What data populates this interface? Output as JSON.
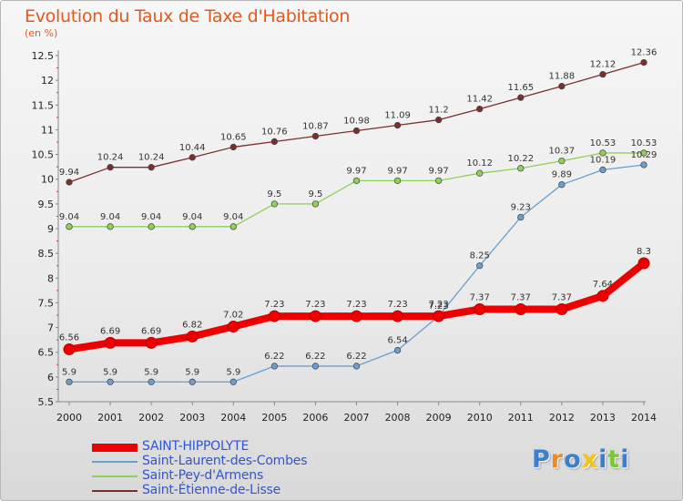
{
  "header": {
    "title": "Evolution du Taux de Taxe d'Habitation",
    "subtitle": "(en %)"
  },
  "chart_data": {
    "type": "line",
    "x": [
      2000,
      2001,
      2002,
      2003,
      2004,
      2005,
      2006,
      2007,
      2008,
      2009,
      2010,
      2011,
      2012,
      2013,
      2014
    ],
    "ylim": [
      5.5,
      12.5
    ],
    "yticks": [
      5.5,
      6,
      6.5,
      7,
      7.5,
      8,
      8.5,
      9,
      9.5,
      10,
      10.5,
      11,
      11.5,
      12,
      12.5
    ],
    "grid": false,
    "legend_position": "bottom-left",
    "series": [
      {
        "name": "Saint-Étienne-de-Lisse",
        "color": "#7a2f2f",
        "values": [
          9.94,
          10.24,
          10.24,
          10.44,
          10.65,
          10.76,
          10.87,
          10.98,
          11.09,
          11.2,
          11.42,
          11.65,
          11.88,
          12.12,
          12.36
        ],
        "labels": [
          "9.94",
          "10.24",
          "10.24",
          "10.44",
          "10.65",
          "10.76",
          "10.87",
          "10.98",
          "11.09",
          "11.2",
          "11.42",
          "11.65",
          "11.88",
          "12.12",
          "12.36"
        ]
      },
      {
        "name": "Saint-Pey-d'Armens",
        "color": "#8fd05a",
        "values": [
          9.04,
          9.04,
          9.04,
          9.04,
          9.04,
          9.5,
          9.5,
          9.97,
          9.97,
          9.97,
          10.12,
          10.22,
          10.37,
          10.53,
          10.53
        ],
        "labels": [
          "9.04",
          "9.04",
          "9.04",
          "9.04",
          "9.04",
          "9.5",
          "9.5",
          "9.97",
          "9.97",
          "9.97",
          "10.12",
          "10.22",
          "10.37",
          "10.53",
          "10.53"
        ]
      },
      {
        "name": "Saint-Laurent-des-Combes",
        "color": "#6a9fd0",
        "values": [
          5.9,
          5.9,
          5.9,
          5.9,
          5.9,
          6.22,
          6.22,
          6.22,
          6.54,
          7.23,
          8.25,
          9.23,
          9.89,
          10.19,
          10.29
        ],
        "labels": [
          "5.9",
          "5.9",
          "5.9",
          "5.9",
          "5.9",
          "6.22",
          "6.22",
          "6.22",
          "6.54",
          "7.23",
          "8.25",
          "9.23",
          "9.89",
          "10.19",
          "10.29"
        ]
      },
      {
        "name": "SAINT-HIPPOLYTE",
        "color": "#ee0000",
        "values": [
          6.56,
          6.69,
          6.69,
          6.82,
          7.02,
          7.23,
          7.23,
          7.23,
          7.23,
          7.23,
          7.37,
          7.37,
          7.37,
          7.64,
          8.3
        ],
        "labels": [
          "6.56",
          "6.69",
          "6.69",
          "6.82",
          "7.02",
          "7.23",
          "7.23",
          "7.23",
          "7.23",
          "7.23",
          "7.37",
          "7.37",
          "7.37",
          "7.64",
          "8.3"
        ]
      }
    ]
  },
  "legend": {
    "items": [
      {
        "label": "SAINT-HIPPOLYTE",
        "color": "#ee0000"
      },
      {
        "label": "Saint-Laurent-des-Combes",
        "color": "#6a9fd0"
      },
      {
        "label": "Saint-Pey-d'Armens",
        "color": "#8fd05a"
      },
      {
        "label": "Saint-Étienne-de-Lisse",
        "color": "#7a2f2f"
      }
    ]
  },
  "logo": {
    "letters": [
      "P",
      "r",
      "o",
      "x",
      "i",
      "t",
      "i"
    ],
    "colors": [
      "#3a7fd0",
      "#f08a1c",
      "#3a7fd0",
      "#f0c419",
      "#3a7fd0",
      "#7cc63c",
      "#3a7fd0"
    ]
  }
}
